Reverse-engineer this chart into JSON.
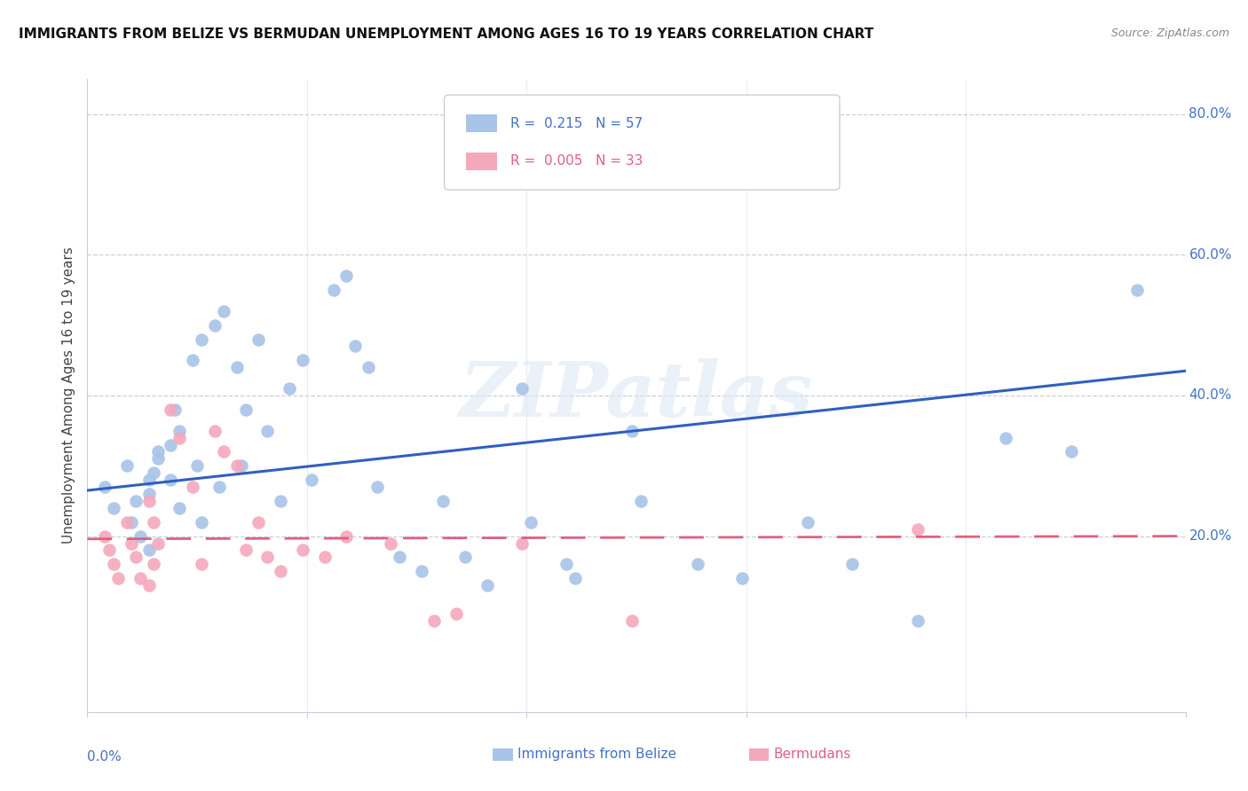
{
  "title": "IMMIGRANTS FROM BELIZE VS BERMUDAN UNEMPLOYMENT AMONG AGES 16 TO 19 YEARS CORRELATION CHART",
  "source": "Source: ZipAtlas.com",
  "ylabel": "Unemployment Among Ages 16 to 19 years",
  "xlim": [
    0.0,
    0.05
  ],
  "ylim": [
    -0.05,
    0.85
  ],
  "blue_R": "0.215",
  "blue_N": "57",
  "pink_R": "0.005",
  "pink_N": "33",
  "blue_color": "#a8c4e8",
  "pink_color": "#f4a8bc",
  "blue_line_color": "#3060c0",
  "pink_line_color": "#e06080",
  "watermark": "ZIPatlas",
  "legend1_label": "Immigrants from Belize",
  "legend2_label": "Bermudans",
  "blue_scatter_x": [
    0.0008,
    0.0012,
    0.0018,
    0.0022,
    0.002,
    0.0024,
    0.0028,
    0.0032,
    0.0028,
    0.003,
    0.0032,
    0.0028,
    0.0038,
    0.0042,
    0.004,
    0.0038,
    0.0042,
    0.0048,
    0.0052,
    0.005,
    0.0052,
    0.0058,
    0.0062,
    0.006,
    0.0068,
    0.0072,
    0.007,
    0.0078,
    0.0082,
    0.0088,
    0.0092,
    0.0098,
    0.0102,
    0.0112,
    0.0118,
    0.0122,
    0.0128,
    0.0132,
    0.0142,
    0.0152,
    0.0162,
    0.0172,
    0.0182,
    0.0198,
    0.0202,
    0.0218,
    0.0222,
    0.0248,
    0.0252,
    0.0278,
    0.0298,
    0.0328,
    0.0348,
    0.0378,
    0.0418,
    0.0448,
    0.0478
  ],
  "blue_scatter_y": [
    0.27,
    0.24,
    0.3,
    0.25,
    0.22,
    0.2,
    0.28,
    0.32,
    0.26,
    0.29,
    0.31,
    0.18,
    0.33,
    0.35,
    0.38,
    0.28,
    0.24,
    0.45,
    0.48,
    0.3,
    0.22,
    0.5,
    0.52,
    0.27,
    0.44,
    0.38,
    0.3,
    0.48,
    0.35,
    0.25,
    0.41,
    0.45,
    0.28,
    0.55,
    0.57,
    0.47,
    0.44,
    0.27,
    0.17,
    0.15,
    0.25,
    0.17,
    0.13,
    0.41,
    0.22,
    0.16,
    0.14,
    0.35,
    0.25,
    0.16,
    0.14,
    0.22,
    0.16,
    0.08,
    0.34,
    0.32,
    0.55
  ],
  "pink_scatter_x": [
    0.0008,
    0.001,
    0.0012,
    0.0014,
    0.0018,
    0.002,
    0.0022,
    0.0024,
    0.0028,
    0.003,
    0.0032,
    0.003,
    0.0028,
    0.0038,
    0.0042,
    0.0048,
    0.0052,
    0.0058,
    0.0062,
    0.0068,
    0.0072,
    0.0078,
    0.0082,
    0.0088,
    0.0098,
    0.0108,
    0.0118,
    0.0138,
    0.0158,
    0.0168,
    0.0198,
    0.0248,
    0.0378
  ],
  "pink_scatter_y": [
    0.2,
    0.18,
    0.16,
    0.14,
    0.22,
    0.19,
    0.17,
    0.14,
    0.25,
    0.22,
    0.19,
    0.16,
    0.13,
    0.38,
    0.34,
    0.27,
    0.16,
    0.35,
    0.32,
    0.3,
    0.18,
    0.22,
    0.17,
    0.15,
    0.18,
    0.17,
    0.2,
    0.19,
    0.08,
    0.09,
    0.19,
    0.08,
    0.21
  ],
  "blue_trendline_x": [
    0.0,
    0.05
  ],
  "blue_trendline_y": [
    0.265,
    0.435
  ],
  "pink_trendline_x": [
    0.0,
    0.05
  ],
  "pink_trendline_y": [
    0.196,
    0.2
  ],
  "ytick_vals": [
    0.2,
    0.4,
    0.6,
    0.8
  ],
  "ytick_labels": [
    "20.0%",
    "40.0%",
    "60.0%",
    "80.0%"
  ],
  "label_color": "#4472c4",
  "pink_label_color": "#e06080",
  "grid_color": "#c8d0dc",
  "spine_color": "#c8d0dc"
}
